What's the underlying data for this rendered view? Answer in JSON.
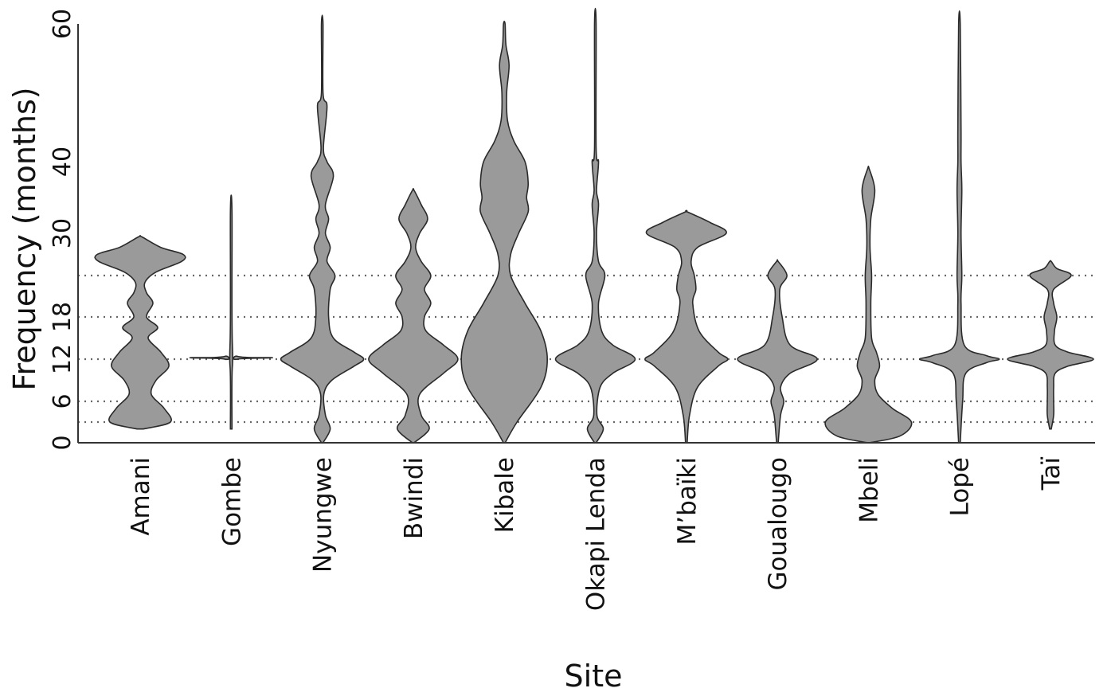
{
  "chart_data": {
    "type": "violin",
    "xlabel": "Site",
    "ylabel": "Frequency (months)",
    "ylim": [
      0,
      60
    ],
    "yticks": [
      0,
      6,
      12,
      18,
      30,
      40,
      60
    ],
    "reference_lines": [
      3,
      6,
      12,
      18,
      24
    ],
    "sites": [
      {
        "name": "Amani",
        "min": 2,
        "max": 29.5,
        "density": [
          [
            2,
            4
          ],
          [
            3,
            38
          ],
          [
            5,
            30
          ],
          [
            7,
            14
          ],
          [
            9,
            20
          ],
          [
            11,
            36
          ],
          [
            13,
            26
          ],
          [
            15,
            10
          ],
          [
            16.5,
            22
          ],
          [
            18,
            8
          ],
          [
            20,
            16
          ],
          [
            21.5,
            8
          ],
          [
            23,
            6
          ],
          [
            24.5,
            20
          ],
          [
            26,
            52
          ],
          [
            27,
            54
          ],
          [
            28,
            26
          ],
          [
            29.5,
            2
          ]
        ]
      },
      {
        "name": "Gombe",
        "min": 2,
        "max": 33,
        "density": [
          [
            2,
            1
          ],
          [
            11,
            1.5
          ],
          [
            12,
            8
          ],
          [
            12.2,
            52
          ],
          [
            12.4,
            8
          ],
          [
            14,
            1.5
          ],
          [
            33,
            1
          ]
        ]
      },
      {
        "name": "Nyungwe",
        "min": 0,
        "max": 60,
        "density": [
          [
            0,
            1
          ],
          [
            2,
            10
          ],
          [
            4,
            4
          ],
          [
            7,
            2
          ],
          [
            9,
            12
          ],
          [
            11,
            40
          ],
          [
            12,
            52
          ],
          [
            13,
            40
          ],
          [
            15,
            14
          ],
          [
            18,
            8
          ],
          [
            22,
            10
          ],
          [
            24,
            16
          ],
          [
            26,
            6
          ],
          [
            28,
            10
          ],
          [
            30,
            4
          ],
          [
            32,
            8
          ],
          [
            34,
            4
          ],
          [
            38,
            14
          ],
          [
            40,
            6
          ],
          [
            42,
            1.5
          ],
          [
            48,
            6
          ],
          [
            50,
            1
          ],
          [
            60,
            1
          ]
        ]
      },
      {
        "name": "Bwindi",
        "min": 0,
        "max": 36,
        "density": [
          [
            0,
            1
          ],
          [
            2,
            20
          ],
          [
            4,
            10
          ],
          [
            7,
            8
          ],
          [
            10,
            38
          ],
          [
            12,
            56
          ],
          [
            14,
            38
          ],
          [
            16,
            16
          ],
          [
            18,
            14
          ],
          [
            20,
            22
          ],
          [
            22,
            14
          ],
          [
            24,
            22
          ],
          [
            26,
            10
          ],
          [
            28,
            3
          ],
          [
            30,
            8
          ],
          [
            32,
            18
          ],
          [
            34,
            10
          ],
          [
            36,
            1
          ]
        ]
      },
      {
        "name": "Kibale",
        "min": 0,
        "max": 60,
        "density": [
          [
            0,
            1
          ],
          [
            3,
            16
          ],
          [
            8,
            46
          ],
          [
            12,
            54
          ],
          [
            16,
            46
          ],
          [
            20,
            26
          ],
          [
            24,
            8
          ],
          [
            27,
            8
          ],
          [
            30,
            18
          ],
          [
            33,
            30
          ],
          [
            35,
            28
          ],
          [
            37,
            30
          ],
          [
            40,
            26
          ],
          [
            43,
            12
          ],
          [
            46,
            4
          ],
          [
            50,
            3
          ],
          [
            54,
            6
          ],
          [
            57,
            2
          ],
          [
            60,
            1
          ]
        ]
      },
      {
        "name": "Okapi Lenda",
        "min": 0,
        "max": 60,
        "density": [
          [
            0,
            1
          ],
          [
            2,
            10
          ],
          [
            4,
            2
          ],
          [
            8,
            6
          ],
          [
            10,
            22
          ],
          [
            12,
            50
          ],
          [
            14,
            22
          ],
          [
            16,
            8
          ],
          [
            20,
            4
          ],
          [
            24,
            12
          ],
          [
            26,
            4
          ],
          [
            30,
            1.5
          ],
          [
            34,
            4
          ],
          [
            36,
            1.5
          ],
          [
            40,
            4
          ],
          [
            42,
            1
          ],
          [
            60,
            1
          ]
        ]
      },
      {
        "name": "M’baïki",
        "min": 0,
        "max": 33,
        "density": [
          [
            0,
            1
          ],
          [
            4,
            4
          ],
          [
            8,
            14
          ],
          [
            11,
            40
          ],
          [
            12,
            52
          ],
          [
            13,
            40
          ],
          [
            16,
            16
          ],
          [
            20,
            8
          ],
          [
            22,
            12
          ],
          [
            24,
            10
          ],
          [
            26,
            6
          ],
          [
            28,
            14
          ],
          [
            30,
            50
          ],
          [
            31.5,
            30
          ],
          [
            33,
            1
          ]
        ]
      },
      {
        "name": "Goualougo",
        "min": 0,
        "max": 26,
        "density": [
          [
            0,
            1
          ],
          [
            4,
            4
          ],
          [
            6,
            8
          ],
          [
            8,
            4
          ],
          [
            10,
            16
          ],
          [
            12,
            50
          ],
          [
            14,
            16
          ],
          [
            18,
            6
          ],
          [
            22,
            3
          ],
          [
            24,
            12
          ],
          [
            26,
            1
          ]
        ]
      },
      {
        "name": "Mbeli",
        "min": 0,
        "max": 39,
        "density": [
          [
            0,
            1
          ],
          [
            1,
            40
          ],
          [
            3,
            54
          ],
          [
            5,
            30
          ],
          [
            7,
            12
          ],
          [
            9,
            8
          ],
          [
            11,
            14
          ],
          [
            13,
            10
          ],
          [
            15,
            4
          ],
          [
            20,
            3
          ],
          [
            24,
            4
          ],
          [
            28,
            2
          ],
          [
            32,
            3
          ],
          [
            36,
            8
          ],
          [
            39,
            1
          ]
        ]
      },
      {
        "name": "Lopé",
        "min": 0,
        "max": 60,
        "density": [
          [
            0,
            1
          ],
          [
            6,
            4
          ],
          [
            10,
            8
          ],
          [
            11.5,
            34
          ],
          [
            12,
            50
          ],
          [
            12.5,
            34
          ],
          [
            14,
            6
          ],
          [
            20,
            2
          ],
          [
            24,
            3
          ],
          [
            30,
            2
          ],
          [
            36,
            3
          ],
          [
            40,
            2
          ],
          [
            45,
            2
          ],
          [
            60,
            1
          ]
        ]
      },
      {
        "name": "Taï",
        "min": 2,
        "max": 26,
        "density": [
          [
            2,
            1
          ],
          [
            4,
            4
          ],
          [
            6,
            4
          ],
          [
            8,
            4
          ],
          [
            10,
            6
          ],
          [
            11,
            22
          ],
          [
            12,
            54
          ],
          [
            13,
            22
          ],
          [
            14,
            6
          ],
          [
            16,
            5
          ],
          [
            18,
            8
          ],
          [
            20,
            4
          ],
          [
            22,
            4
          ],
          [
            24,
            26
          ],
          [
            25,
            8
          ],
          [
            26,
            1
          ]
        ]
      }
    ]
  }
}
